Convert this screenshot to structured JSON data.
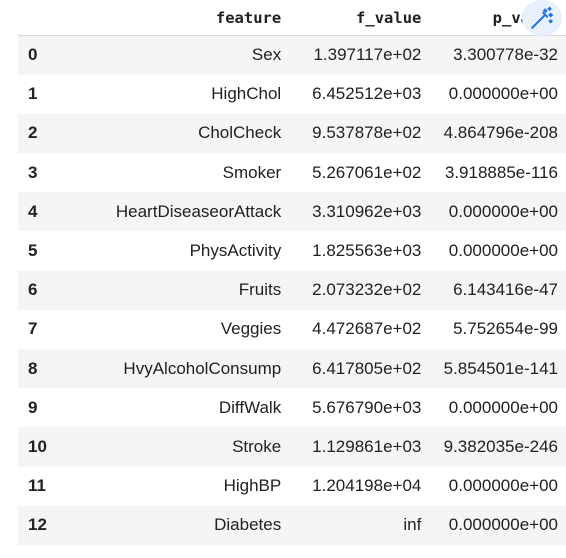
{
  "table": {
    "columns": [
      "",
      "feature",
      "f_value",
      "p_value"
    ],
    "rows": [
      {
        "index": "0",
        "feature": "Sex",
        "f_value": "1.397117e+02",
        "p_value": "3.300778e-32"
      },
      {
        "index": "1",
        "feature": "HighChol",
        "f_value": "6.452512e+03",
        "p_value": "0.000000e+00"
      },
      {
        "index": "2",
        "feature": "CholCheck",
        "f_value": "9.537878e+02",
        "p_value": "4.864796e-208"
      },
      {
        "index": "3",
        "feature": "Smoker",
        "f_value": "5.267061e+02",
        "p_value": "3.918885e-116"
      },
      {
        "index": "4",
        "feature": "HeartDiseaseorAttack",
        "f_value": "3.310962e+03",
        "p_value": "0.000000e+00"
      },
      {
        "index": "5",
        "feature": "PhysActivity",
        "f_value": "1.825563e+03",
        "p_value": "0.000000e+00"
      },
      {
        "index": "6",
        "feature": "Fruits",
        "f_value": "2.073232e+02",
        "p_value": "6.143416e-47"
      },
      {
        "index": "7",
        "feature": "Veggies",
        "f_value": "4.472687e+02",
        "p_value": "5.752654e-99"
      },
      {
        "index": "8",
        "feature": "HvyAlcoholConsump",
        "f_value": "6.417805e+02",
        "p_value": "5.854501e-141"
      },
      {
        "index": "9",
        "feature": "DiffWalk",
        "f_value": "5.676790e+03",
        "p_value": "0.000000e+00"
      },
      {
        "index": "10",
        "feature": "Stroke",
        "f_value": "1.129861e+03",
        "p_value": "9.382035e-246"
      },
      {
        "index": "11",
        "feature": "HighBP",
        "f_value": "1.204198e+04",
        "p_value": "0.000000e+00"
      },
      {
        "index": "12",
        "feature": "Diabetes",
        "f_value": "inf",
        "p_value": "0.000000e+00"
      }
    ]
  },
  "toolbar": {
    "magic_icon": "magic-wand-icon",
    "accent_color": "#1a73e8",
    "button_bg": "#e8f0fe"
  }
}
